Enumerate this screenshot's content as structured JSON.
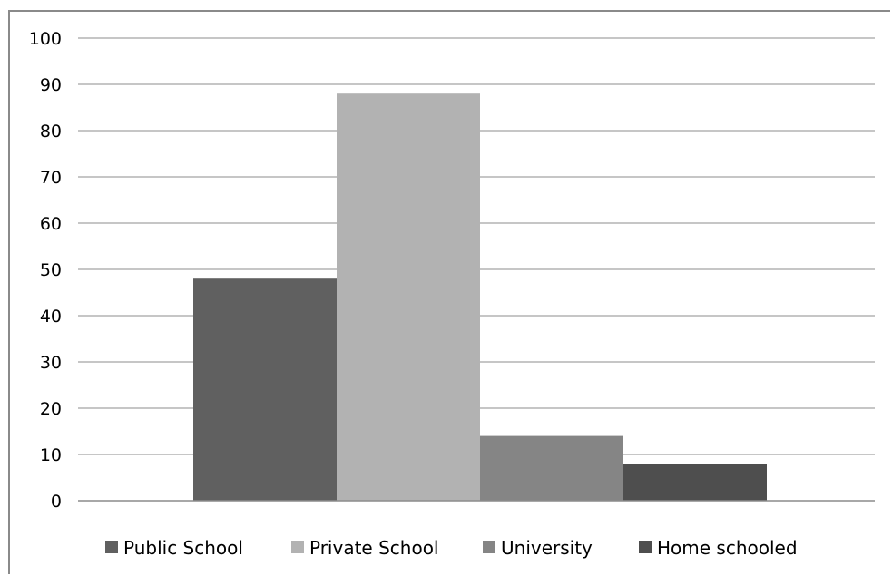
{
  "chart_data": {
    "type": "bar",
    "categories": [
      ""
    ],
    "series": [
      {
        "name": "Public School",
        "values": [
          48
        ],
        "color": "#606060"
      },
      {
        "name": "Private School",
        "values": [
          88
        ],
        "color": "#b2b2b2"
      },
      {
        "name": "University",
        "values": [
          14
        ],
        "color": "#858585"
      },
      {
        "name": "Home schooled",
        "values": [
          8
        ],
        "color": "#4e4e4e"
      }
    ],
    "title": "",
    "xlabel": "",
    "ylabel": "",
    "ylim": [
      0,
      100
    ],
    "yticks": [
      "0",
      "10",
      "20",
      "30",
      "40",
      "50",
      "60",
      "70",
      "80",
      "90",
      "100"
    ],
    "grid": true,
    "gridline_color": "#8c8c8c",
    "legend": "bottom"
  }
}
